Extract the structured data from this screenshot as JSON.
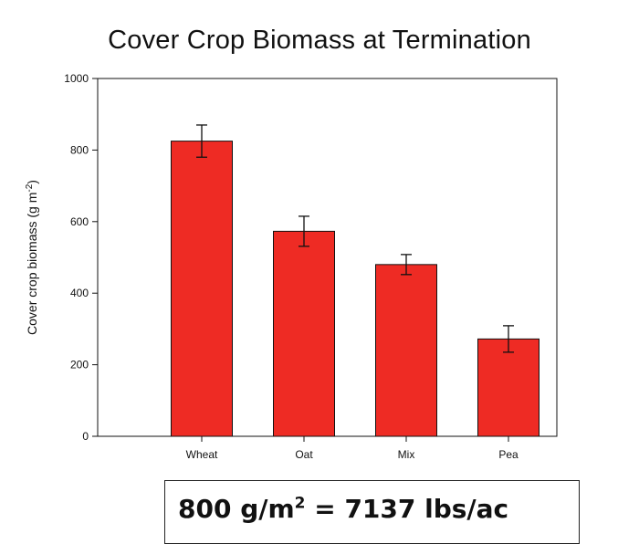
{
  "chart_data": {
    "type": "bar",
    "title": "Cover Crop Biomass at Termination",
    "ylabel_text": "Cover crop biomass (g m",
    "ylabel_exp": "-2",
    "ylabel_close": ")",
    "xlabel": "",
    "categories": [
      "Wheat",
      "Oat",
      "Mix",
      "Pea"
    ],
    "values": [
      825,
      573,
      480,
      272
    ],
    "error": [
      45,
      42,
      28,
      37
    ],
    "ylim": [
      0,
      1000
    ],
    "yticks": [
      0,
      200,
      400,
      600,
      800,
      1000
    ],
    "bar_color": "#ee2b24",
    "grid": false
  },
  "note": {
    "prefix": "800 g/m",
    "exp": "2",
    "suffix": " = 7137 lbs/ac"
  }
}
